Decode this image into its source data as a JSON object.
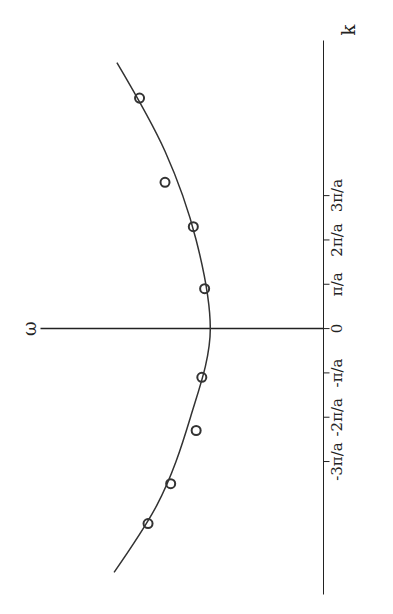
{
  "chart_data": {
    "type": "line",
    "x_label": "k",
    "y_label": "ω",
    "xlim": [
      -6,
      6.5
    ],
    "ylim": [
      0,
      10
    ],
    "xticks": [
      {
        "value": -3,
        "label": "-3π/a"
      },
      {
        "value": -2,
        "label": "-2π/a"
      },
      {
        "value": -1,
        "label": "-π/a"
      },
      0,
      {
        "value": 1,
        "label": "π/a"
      },
      {
        "value": 2,
        "label": "2π/a"
      },
      {
        "value": 3,
        "label": "3π/a"
      }
    ],
    "yticks": [
      0,
      10
    ],
    "tick_labels": "x",
    "grid": false,
    "series": [
      {
        "type": "line",
        "color": "#333333",
        "line_style": "solid",
        "x": [
          -5.5,
          -4,
          -2,
          0,
          2,
          4,
          6
        ],
        "values": [
          7.4,
          5.9,
          4.7,
          4.0,
          4.5,
          5.6,
          7.3
        ]
      },
      {
        "type": "scatter",
        "color": "#333333",
        "marker": "circle",
        "x": [
          -4.4,
          -3.5,
          -2.3,
          -1.1,
          0.9,
          2.3,
          3.3,
          5.2
        ],
        "values": [
          6.2,
          5.4,
          4.5,
          4.3,
          4.2,
          4.6,
          5.6,
          6.5
        ]
      }
    ]
  }
}
